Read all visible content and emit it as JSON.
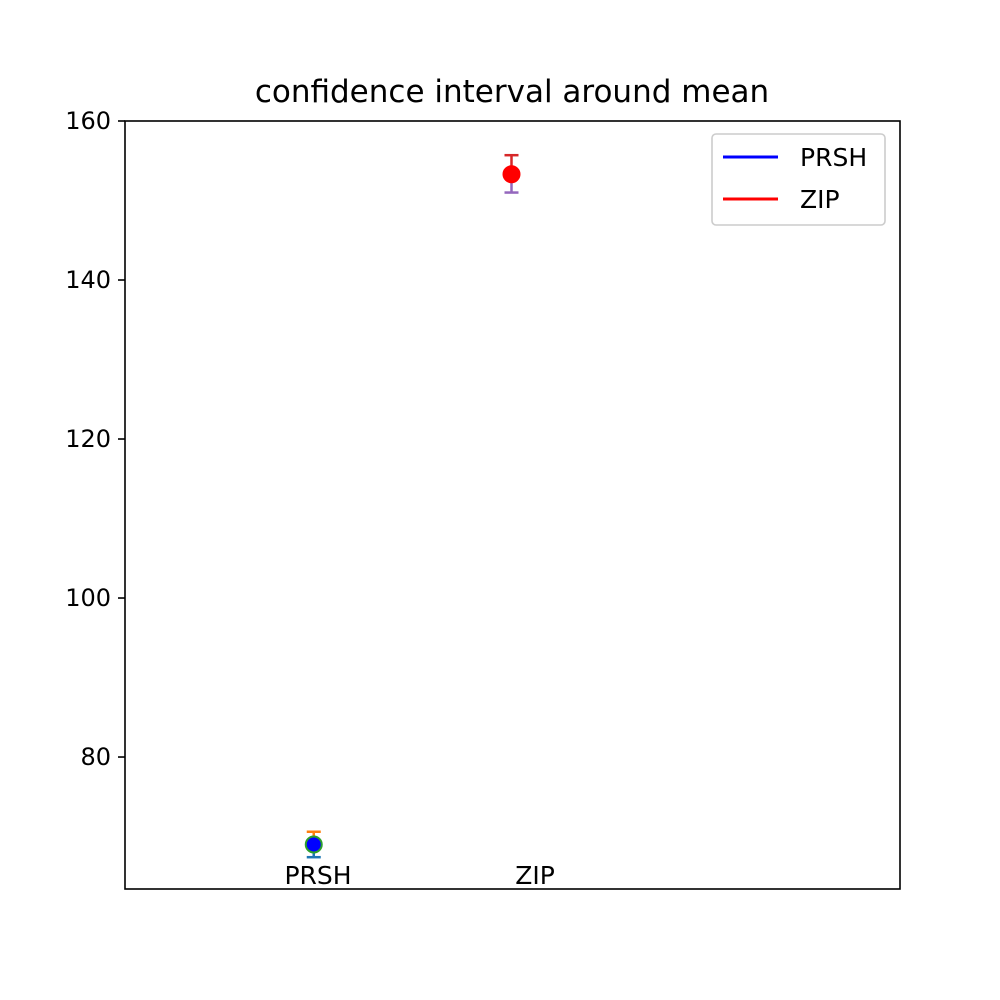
{
  "chart_data": {
    "type": "scatter",
    "title": "confidence interval around mean",
    "xlabel": "",
    "ylabel": "",
    "ylim": [
      63.4,
      160
    ],
    "yticks": [
      80,
      100,
      120,
      140,
      160
    ],
    "grid": false,
    "legend_placement": "top-right",
    "series": [
      {
        "name": "PRSH",
        "color": "#0000ff",
        "x_position": 0.25,
        "label": "PRSH",
        "mean": 69.0,
        "lower": 67.4,
        "upper": 70.6,
        "marker_edge_color": "#2ca02c",
        "err_upper_color": "#ff7f0e",
        "err_lower_color": "#1f77b4"
      },
      {
        "name": "ZIP",
        "color": "#ff0000",
        "x_position": 0.5,
        "label": "ZIP",
        "mean": 153.3,
        "lower": 151.0,
        "upper": 155.7,
        "marker_edge_color": "#ff0000",
        "err_upper_color": "#d62728",
        "err_lower_color": "#9467bd"
      }
    ]
  }
}
